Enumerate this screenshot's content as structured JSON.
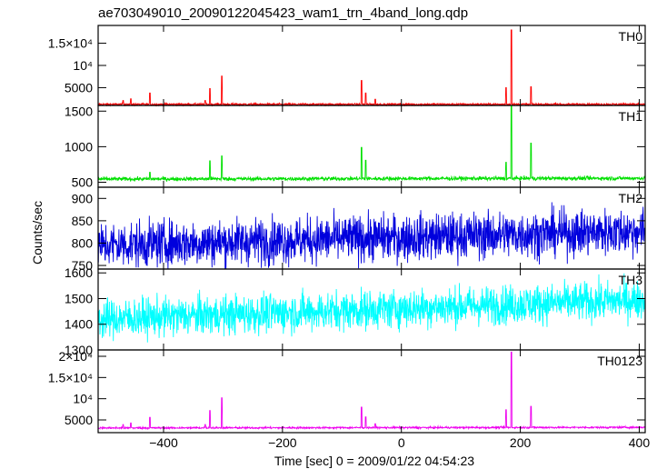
{
  "title": "ae703049010_20090122045423_wam1_trn_4band_long.qdp",
  "chart_data": {
    "type": "line",
    "title": "ae703049010_20090122045423_wam1_trn_4band_long.qdp",
    "xlabel": "Time [sec] 0 = 2009/01/22 04:54:23",
    "ylabel": "Counts/sec",
    "xlim": [
      -510,
      410
    ],
    "x_ticks": [
      -400,
      -200,
      0,
      200,
      400
    ],
    "x_tick_labels": [
      "−400",
      "−200",
      "0",
      "200",
      "400"
    ],
    "grid": false,
    "panels": [
      {
        "name": "TH0",
        "color": "#ff0000",
        "ylim": [
          1000,
          19000
        ],
        "y_ticks": [
          5000,
          10000,
          15000
        ],
        "y_tick_labels": [
          "5000",
          "10⁴",
          "1.5×10⁴"
        ],
        "baseline": 1250,
        "noise": 120,
        "trend": 0,
        "peaks": [
          [
            -468,
            2100
          ],
          [
            -455,
            2500
          ],
          [
            -423,
            3800
          ],
          [
            -330,
            2100
          ],
          [
            -322,
            4800
          ],
          [
            -302,
            7600
          ],
          [
            -67,
            6600
          ],
          [
            -60,
            3800
          ],
          [
            -44,
            2400
          ],
          [
            176,
            5000
          ],
          [
            185,
            18000
          ],
          [
            218,
            5200
          ]
        ]
      },
      {
        "name": "TH1",
        "color": "#00e000",
        "ylim": [
          430,
          1580
        ],
        "y_ticks": [
          500,
          1000,
          1500
        ],
        "y_tick_labels": [
          "500",
          "1000",
          "1500"
        ],
        "baseline": 545,
        "noise": 14,
        "trend": 12,
        "peaks": [
          [
            -423,
            640
          ],
          [
            -322,
            800
          ],
          [
            -302,
            870
          ],
          [
            -67,
            990
          ],
          [
            -60,
            810
          ],
          [
            176,
            780
          ],
          [
            185,
            1580
          ],
          [
            218,
            1050
          ]
        ]
      },
      {
        "name": "TH2",
        "color": "#0000dd",
        "ylim": [
          742,
          925
        ],
        "y_ticks": [
          750,
          800,
          850,
          900
        ],
        "y_tick_labels": [
          "750",
          "800",
          "850",
          "900"
        ],
        "baseline": 795,
        "noise": 26,
        "trend": 32,
        "peaks": []
      },
      {
        "name": "TH3",
        "color": "#00ffff",
        "ylim": [
          1300,
          1615
        ],
        "y_ticks": [
          1300,
          1400,
          1500,
          1600
        ],
        "y_tick_labels": [
          "1300",
          "1400",
          "1500",
          "1600"
        ],
        "baseline": 1420,
        "noise": 38,
        "trend": 75,
        "peaks": []
      },
      {
        "name": "TH0123",
        "color": "#ee00ee",
        "ylim": [
          2000,
          21500
        ],
        "y_ticks": [
          5000,
          10000,
          15000,
          20000
        ],
        "y_tick_labels": [
          "5000",
          "10⁴",
          "1.5×10⁴",
          "2×10⁴"
        ],
        "baseline": 3100,
        "noise": 110,
        "trend": 150,
        "peaks": [
          [
            -468,
            3900
          ],
          [
            -455,
            4300
          ],
          [
            -423,
            5600
          ],
          [
            -330,
            3900
          ],
          [
            -322,
            7200
          ],
          [
            -302,
            10200
          ],
          [
            -67,
            8000
          ],
          [
            -60,
            5700
          ],
          [
            -44,
            4100
          ],
          [
            176,
            7400
          ],
          [
            185,
            21000
          ],
          [
            218,
            8200
          ]
        ]
      }
    ]
  }
}
